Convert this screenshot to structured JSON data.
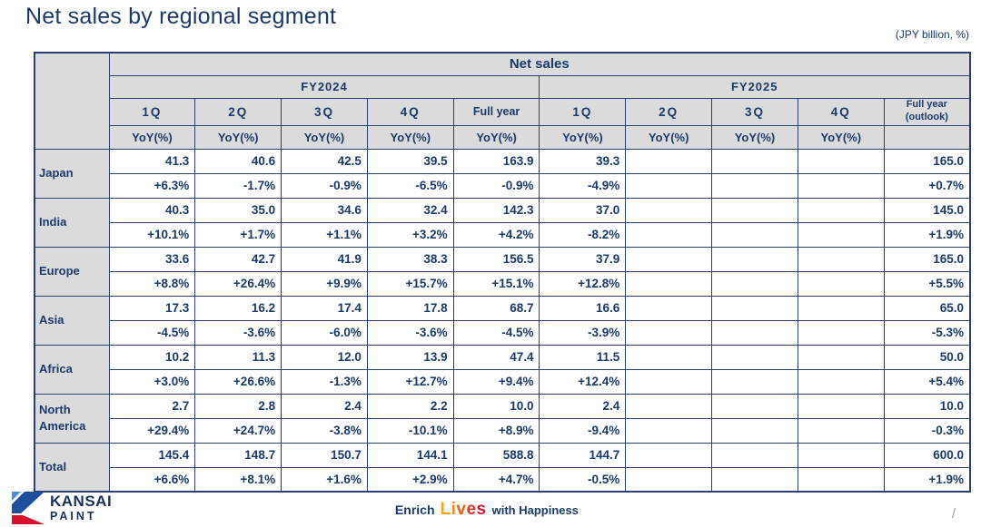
{
  "page": {
    "title": "Net sales by regional segment",
    "unit_note": "(JPY billion, %)",
    "page_separator": "/"
  },
  "colors": {
    "navy_text": "#1b3a6b",
    "table_border": "#2b4072",
    "header_bg": "#dbdbdb",
    "brand_blue": "#1e4f9c",
    "brand_light_blue": "#4a90d9",
    "brand_red": "#d6122e"
  },
  "table": {
    "main_header": "Net sales",
    "yoy_label": "YoY(%)",
    "groups": [
      {
        "label": "FY2024",
        "quarters": [
          "1Q",
          "2Q",
          "3Q",
          "4Q",
          "Full year"
        ]
      },
      {
        "label": "FY2025",
        "quarters": [
          "1Q",
          "2Q",
          "3Q",
          "4Q",
          "Full year (outlook)"
        ]
      }
    ],
    "rows": [
      {
        "region": "Japan",
        "fy2024": [
          "41.3",
          "40.6",
          "42.5",
          "39.5",
          "163.9"
        ],
        "fy2024_yoy": [
          "+6.3%",
          "-1.7%",
          "-0.9%",
          "-6.5%",
          "-0.9%"
        ],
        "fy2025": [
          "39.3",
          "",
          "",
          "",
          "165.0"
        ],
        "fy2025_yoy": [
          "-4.9%",
          "",
          "",
          "",
          "+0.7%"
        ]
      },
      {
        "region": "India",
        "fy2024": [
          "40.3",
          "35.0",
          "34.6",
          "32.4",
          "142.3"
        ],
        "fy2024_yoy": [
          "+10.1%",
          "+1.7%",
          "+1.1%",
          "+3.2%",
          "+4.2%"
        ],
        "fy2025": [
          "37.0",
          "",
          "",
          "",
          "145.0"
        ],
        "fy2025_yoy": [
          "-8.2%",
          "",
          "",
          "",
          "+1.9%"
        ]
      },
      {
        "region": "Europe",
        "fy2024": [
          "33.6",
          "42.7",
          "41.9",
          "38.3",
          "156.5"
        ],
        "fy2024_yoy": [
          "+8.8%",
          "+26.4%",
          "+9.9%",
          "+15.7%",
          "+15.1%"
        ],
        "fy2025": [
          "37.9",
          "",
          "",
          "",
          "165.0"
        ],
        "fy2025_yoy": [
          "+12.8%",
          "",
          "",
          "",
          "+5.5%"
        ]
      },
      {
        "region": "Asia",
        "fy2024": [
          "17.3",
          "16.2",
          "17.4",
          "17.8",
          "68.7"
        ],
        "fy2024_yoy": [
          "-4.5%",
          "-3.6%",
          "-6.0%",
          "-3.6%",
          "-4.5%"
        ],
        "fy2025": [
          "16.6",
          "",
          "",
          "",
          "65.0"
        ],
        "fy2025_yoy": [
          "-3.9%",
          "",
          "",
          "",
          "-5.3%"
        ]
      },
      {
        "region": "Africa",
        "fy2024": [
          "10.2",
          "11.3",
          "12.0",
          "13.9",
          "47.4"
        ],
        "fy2024_yoy": [
          "+3.0%",
          "+26.6%",
          "-1.3%",
          "+12.7%",
          "+9.4%"
        ],
        "fy2025": [
          "11.5",
          "",
          "",
          "",
          "50.0"
        ],
        "fy2025_yoy": [
          "+12.4%",
          "",
          "",
          "",
          "+5.4%"
        ]
      },
      {
        "region": "North America",
        "fy2024": [
          "2.7",
          "2.8",
          "2.4",
          "2.2",
          "10.0"
        ],
        "fy2024_yoy": [
          "+29.4%",
          "+24.7%",
          "-3.8%",
          "-10.1%",
          "+8.9%"
        ],
        "fy2025": [
          "2.4",
          "",
          "",
          "",
          "10.0"
        ],
        "fy2025_yoy": [
          "-9.4%",
          "",
          "",
          "",
          "-0.3%"
        ]
      },
      {
        "region": "Total",
        "fy2024": [
          "145.4",
          "148.7",
          "150.7",
          "144.1",
          "588.8"
        ],
        "fy2024_yoy": [
          "+6.6%",
          "+8.1%",
          "+1.6%",
          "+2.9%",
          "+4.7%"
        ],
        "fy2025": [
          "144.7",
          "",
          "",
          "",
          "600.0"
        ],
        "fy2025_yoy": [
          "-0.5%",
          "",
          "",
          "",
          "+1.9%"
        ]
      }
    ]
  },
  "footer": {
    "logo_line1": "KANSAI",
    "logo_line2": "PAINT",
    "tagline_enrich": "Enrich",
    "tagline_with": "with Happiness",
    "lives_letters": [
      {
        "ch": "L",
        "color": "#F2A51F"
      },
      {
        "ch": "i",
        "color": "#EF8B1D"
      },
      {
        "ch": "v",
        "color": "#E76420"
      },
      {
        "ch": "e",
        "color": "#DA3C27"
      },
      {
        "ch": "s",
        "color": "#C8192E"
      }
    ]
  }
}
